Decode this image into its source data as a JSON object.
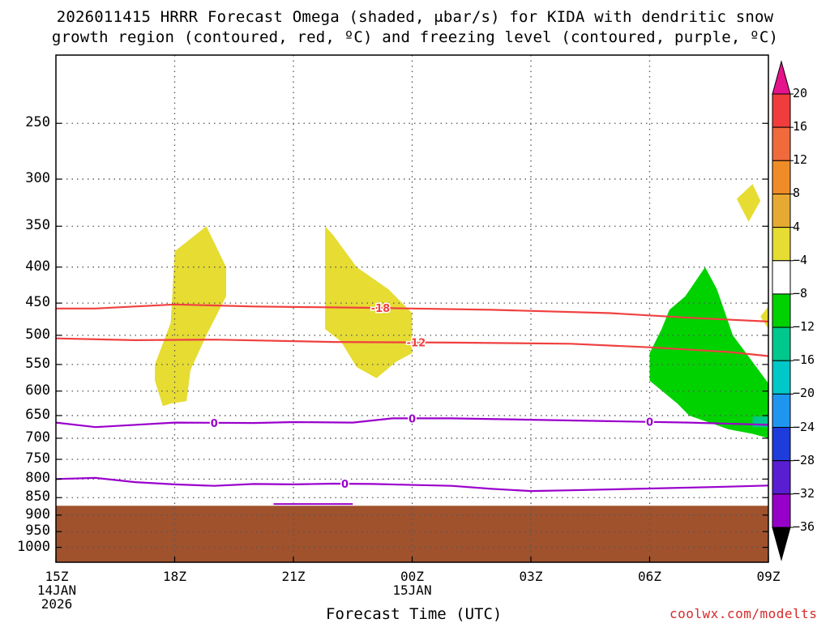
{
  "title": {
    "line1": "2026011415 HRRR Forecast Omega (shaded, μbar/s) for KIDA with dendritic snow",
    "line2": "growth region (contoured, red, ºC) and freezing level (contoured, purple, ºC)"
  },
  "xlabel": "Forecast Time (UTC)",
  "credit": "coolwx.com/modelts",
  "colors": {
    "ground": "#a0522d",
    "dgz_contour": "#f04040",
    "freezing_contour": "#9a00cc",
    "grid": "#555555"
  },
  "chart_data": {
    "type": "heatmap",
    "title": "2026011415 HRRR Forecast Omega (shaded, μbar/s) for KIDA with dendritic snow growth region (contoured, red, ºC) and freezing level (contoured, purple, ºC)",
    "xlabel": "Forecast Time (UTC)",
    "ylabel": "",
    "x_axis": {
      "unit": "hours since 15Z 14JAN",
      "range": [
        0,
        18
      ],
      "ticks": [
        {
          "hour": 0,
          "label": [
            "15Z",
            "14JAN",
            "2026"
          ]
        },
        {
          "hour": 3,
          "label": [
            "18Z"
          ]
        },
        {
          "hour": 6,
          "label": [
            "21Z"
          ]
        },
        {
          "hour": 9,
          "label": [
            "00Z",
            "15JAN"
          ]
        },
        {
          "hour": 12,
          "label": [
            "03Z"
          ]
        },
        {
          "hour": 15,
          "label": [
            "06Z"
          ]
        },
        {
          "hour": 18,
          "label": [
            "09Z"
          ]
        }
      ]
    },
    "y_axis": {
      "unit": "hPa",
      "scale": "log",
      "range": [
        200,
        1050
      ],
      "ticks": [
        250,
        300,
        350,
        400,
        450,
        500,
        550,
        600,
        650,
        700,
        750,
        800,
        850,
        900,
        950,
        1000
      ]
    },
    "colorbar": {
      "levels": [
        20,
        16,
        12,
        8,
        4,
        -4,
        -8,
        -12,
        -16,
        -20,
        -24,
        -28,
        -32,
        -36
      ],
      "colors": [
        "#f03c3c",
        "#f06a3c",
        "#f08c28",
        "#e6aa32",
        "#e6dc32",
        "#ffffff",
        "#00d200",
        "#00c88c",
        "#00c8c8",
        "#1e96f0",
        "#1e3cdc",
        "#5a1ed2",
        "#9600c8",
        "#aaaaaa"
      ],
      "top_color": "#e6148c",
      "bottom_color": "#000000"
    },
    "omega_regions": [
      {
        "name": "rising-17z",
        "value_range": "4 to 8",
        "color": "#e6dc32",
        "points": [
          [
            2.7,
            630
          ],
          [
            2.5,
            580
          ],
          [
            2.5,
            550
          ],
          [
            2.9,
            480
          ],
          [
            3.0,
            380
          ],
          [
            3.8,
            350
          ],
          [
            4.3,
            400
          ],
          [
            4.3,
            440
          ],
          [
            3.8,
            500
          ],
          [
            3.4,
            560
          ],
          [
            3.3,
            620
          ],
          [
            2.9,
            625
          ]
        ]
      },
      {
        "name": "rising-23z",
        "value_range": "4 to 8",
        "color": "#e6dc32",
        "points": [
          [
            6.8,
            350
          ],
          [
            7.0,
            360
          ],
          [
            7.6,
            400
          ],
          [
            8.4,
            430
          ],
          [
            9.0,
            465
          ],
          [
            9.0,
            530
          ],
          [
            8.6,
            545
          ],
          [
            8.1,
            575
          ],
          [
            7.6,
            555
          ],
          [
            7.2,
            510
          ],
          [
            6.8,
            490
          ]
        ]
      },
      {
        "name": "rising-0745z",
        "value_range": "4 to 8",
        "color": "#e6dc32",
        "points": [
          [
            17.2,
            320
          ],
          [
            17.6,
            305
          ],
          [
            17.8,
            322
          ],
          [
            17.5,
            345
          ]
        ]
      },
      {
        "name": "rising-09z-edge",
        "value_range": "4 to 8",
        "color": "#e6dc32",
        "points": [
          [
            18.0,
            455
          ],
          [
            18.0,
            490
          ],
          [
            17.8,
            470
          ]
        ]
      },
      {
        "name": "sinking-07z",
        "value_range": "-4 to -8",
        "color": "#00d200",
        "points": [
          [
            16.4,
            400
          ],
          [
            16.7,
            430
          ],
          [
            17.1,
            500
          ],
          [
            17.7,
            555
          ],
          [
            18.0,
            585
          ],
          [
            18.0,
            700
          ],
          [
            17.6,
            690
          ],
          [
            17.0,
            680
          ],
          [
            16.0,
            650
          ],
          [
            15.7,
            625
          ],
          [
            15.0,
            580
          ],
          [
            15.0,
            530
          ],
          [
            15.3,
            490
          ],
          [
            15.5,
            460
          ],
          [
            15.9,
            440
          ]
        ]
      },
      {
        "name": "sinking-09z-core",
        "value_range": "-8 to -12",
        "color": "#00c88c",
        "points": [
          [
            17.6,
            652
          ],
          [
            18.0,
            652
          ],
          [
            18.0,
            675
          ],
          [
            17.6,
            675
          ]
        ]
      }
    ],
    "dgz_contours": [
      {
        "value": -18,
        "label": "-18",
        "label_hour": 8.2,
        "points": [
          [
            0,
            458
          ],
          [
            1,
            458
          ],
          [
            3,
            452
          ],
          [
            5,
            455
          ],
          [
            8,
            457
          ],
          [
            11,
            460
          ],
          [
            14,
            465
          ],
          [
            16,
            472
          ],
          [
            18,
            478
          ]
        ]
      },
      {
        "value": -12,
        "label": "-12",
        "label_hour": 9.1,
        "points": [
          [
            0,
            505
          ],
          [
            2,
            508
          ],
          [
            4,
            507
          ],
          [
            7,
            511
          ],
          [
            10,
            512
          ],
          [
            13,
            514
          ],
          [
            15,
            520
          ],
          [
            17,
            528
          ],
          [
            18,
            535
          ]
        ]
      }
    ],
    "freezing_level_contours": [
      {
        "value": 0,
        "label": "0",
        "label_hours": [
          4,
          9,
          15
        ],
        "points": [
          [
            0,
            665
          ],
          [
            1,
            675
          ],
          [
            3,
            665
          ],
          [
            5,
            666
          ],
          [
            6,
            664
          ],
          [
            7.5,
            665
          ],
          [
            8.5,
            656
          ],
          [
            10,
            656
          ],
          [
            12,
            659
          ],
          [
            14,
            662
          ],
          [
            16,
            665
          ],
          [
            18,
            670
          ]
        ]
      },
      {
        "value": 0,
        "label": "0",
        "label_hours": [
          7.3
        ],
        "points": [
          [
            0,
            800
          ],
          [
            1,
            797
          ],
          [
            2,
            808
          ],
          [
            3,
            814
          ],
          [
            4,
            818
          ],
          [
            5,
            813
          ],
          [
            6,
            814
          ],
          [
            7,
            812
          ],
          [
            8,
            813
          ],
          [
            10,
            818
          ],
          [
            11,
            826
          ],
          [
            12,
            832
          ],
          [
            13,
            830
          ],
          [
            15,
            825
          ],
          [
            17,
            820
          ],
          [
            18,
            817
          ]
        ]
      }
    ],
    "ground_surface": {
      "pressure_hpa": 873,
      "dip_hours": [
        5.5,
        7.5
      ],
      "dip_pressure_hpa": 868
    }
  }
}
